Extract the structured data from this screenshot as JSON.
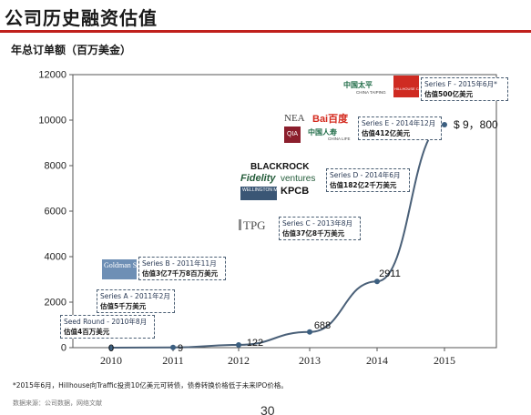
{
  "page": {
    "title": "公司历史融资估值",
    "footnote": "*2015年6月，Hillhouse向Traffic投资10亿美元可转债，债券转换价格低于未来IPO价格。",
    "source": "数据来源：公司数据，网络文献",
    "page_number": "30"
  },
  "chart_data": {
    "type": "line",
    "title": "年总订单额（百万美金）",
    "xlabel": "",
    "ylabel": "",
    "x": [
      "2010",
      "2011",
      "2012",
      "2013",
      "2014",
      "2015"
    ],
    "x_ticks": [
      "2010",
      "2011",
      "2012",
      "2013",
      "2014",
      "2015"
    ],
    "y_ticks": [
      "0",
      "2000",
      "4000",
      "6000",
      "8000",
      "10000",
      "12000"
    ],
    "ylim": [
      0,
      12000
    ],
    "grid": false,
    "legend": "none",
    "series": [
      {
        "values": [
          0,
          9,
          122,
          688,
          2911,
          9800
        ]
      }
    ],
    "data_labels": [
      "0",
      "9",
      "122",
      "688",
      "2911",
      "$ 9，800"
    ],
    "line_color": "#4a6078",
    "marker_color": "#3c5f80"
  },
  "callouts": {
    "seed": {
      "line1": "Seed Round - 2010年8月",
      "line2": "估值4百万美元"
    },
    "a": {
      "line1": "Series A - 2011年2月",
      "line2": "估值5千万美元"
    },
    "b": {
      "line1": "Series B - 2011年11月",
      "line2": "估值3亿7千万8百万美元"
    },
    "c": {
      "line1": "Series C - 2013年8月",
      "line2": "估值37亿8千万美元"
    },
    "d": {
      "line1": "Series D - 2014年6月",
      "line2": "估值182亿2千万美元"
    },
    "e": {
      "line1": "Series E - 2014年12月",
      "line2": "估值412亿美元"
    },
    "f": {
      "line1": "Series F - 2015年6月*",
      "line2": "估值500亿美元"
    }
  },
  "logos": {
    "goldman": "Goldman Sachs",
    "tpg": "TPG",
    "blackrock": "BLACKROCK",
    "fidelity": "Fidelity",
    "ventures": "ventures",
    "wellington": "WELLINGTON MANAGEMENT",
    "kpcb": "KPCB",
    "nea": "NEA",
    "baidu": "Bai百度",
    "qia": "QIA",
    "chinalife": "中国人寿",
    "chinalife_sub": "CHINA LIFE",
    "cpic": "中国太平",
    "cpic_sub": "CHINA TAIPING",
    "hillhouse": "HILLHOUSE CAPITAL"
  }
}
